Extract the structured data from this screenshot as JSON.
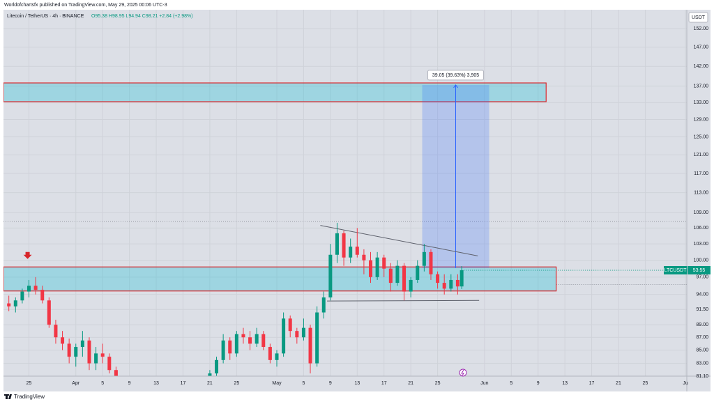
{
  "header": {
    "published": "Worldofchartsfx published on TradingView.com, May 29, 2025 00:06 UTC-3",
    "symbol": "Litecoin / TetherUS · 4h · BINANCE",
    "ohlc": "O95.38 H98.95 L94.94 C98.21 +2.84 (+2.98%)",
    "currency": "USDT",
    "brand": "TradingView"
  },
  "chart_data": {
    "type": "candlestick",
    "log": true,
    "grid": true,
    "up_color": "#089981",
    "down_color": "#f23645",
    "xlim": [
      80.2,
      182.2
    ],
    "ylim": [
      81.1,
      156.5
    ],
    "xticks": [
      {
        "value": 84,
        "label": "25"
      },
      {
        "value": 91,
        "label": "Apr"
      },
      {
        "value": 95,
        "label": "5"
      },
      {
        "value": 99,
        "label": "9"
      },
      {
        "value": 103,
        "label": "13"
      },
      {
        "value": 107,
        "label": "17"
      },
      {
        "value": 111,
        "label": "21"
      },
      {
        "value": 115,
        "label": "25"
      },
      {
        "value": 121,
        "label": "May"
      },
      {
        "value": 125,
        "label": "5"
      },
      {
        "value": 129,
        "label": "9"
      },
      {
        "value": 133,
        "label": "13"
      },
      {
        "value": 137,
        "label": "17"
      },
      {
        "value": 141,
        "label": "21"
      },
      {
        "value": 145,
        "label": "25"
      },
      {
        "value": 152,
        "label": "Jun"
      },
      {
        "value": 156,
        "label": "5"
      },
      {
        "value": 160,
        "label": "9"
      },
      {
        "value": 164,
        "label": "13"
      },
      {
        "value": 168,
        "label": "17"
      },
      {
        "value": 172,
        "label": "21"
      },
      {
        "value": 176,
        "label": "25"
      },
      {
        "value": 182,
        "label": "Ju"
      }
    ],
    "yticks": [
      {
        "value": 152,
        "label": "152.00"
      },
      {
        "value": 147,
        "label": "147.00"
      },
      {
        "value": 142,
        "label": "142.00"
      },
      {
        "value": 137,
        "label": "137.00"
      },
      {
        "value": 133,
        "label": "133.00"
      },
      {
        "value": 129,
        "label": "129.00"
      },
      {
        "value": 125,
        "label": "125.00"
      },
      {
        "value": 121,
        "label": "121.00"
      },
      {
        "value": 117,
        "label": "117.00"
      },
      {
        "value": 113,
        "label": "113.00"
      },
      {
        "value": 109,
        "label": "109.00"
      },
      {
        "value": 106,
        "label": "106.00"
      },
      {
        "value": 103,
        "label": "103.00"
      },
      {
        "value": 100,
        "label": "100.00"
      },
      {
        "value": 97,
        "label": "97.00"
      },
      {
        "value": 94,
        "label": "94.00"
      },
      {
        "value": 91.5,
        "label": "91.50"
      },
      {
        "value": 89,
        "label": "89.00"
      },
      {
        "value": 87,
        "label": "87.00"
      },
      {
        "value": 85,
        "label": "85.00"
      },
      {
        "value": 83,
        "label": "83.00"
      },
      {
        "value": 81.1,
        "label": "81.10"
      }
    ],
    "x": [
      81,
      82,
      83,
      84,
      85,
      86,
      87,
      88,
      89,
      90,
      91,
      92,
      93,
      94,
      95,
      96,
      97,
      111,
      112,
      113,
      114,
      115,
      116,
      117,
      118,
      119,
      120,
      121,
      122,
      123,
      124,
      125,
      126,
      127,
      128,
      129,
      130,
      131,
      132,
      133,
      134,
      135,
      136,
      137,
      138,
      139,
      140,
      141,
      142,
      143,
      144,
      145,
      146,
      147,
      148,
      148.6
    ],
    "open": [
      92.5,
      92.0,
      93.0,
      94.5,
      95.5,
      94.8,
      93.0,
      89.0,
      87.0,
      86.0,
      84.0,
      85.5,
      86.5,
      83.0,
      84.5,
      84.0,
      82.0,
      80.5,
      81.5,
      83.5,
      86.5,
      84.5,
      87.5,
      87.0,
      86.0,
      87.5,
      85.5,
      83.5,
      84.5,
      90.0,
      88.0,
      87.0,
      88.5,
      83.0,
      91.0,
      93.5,
      101.0,
      105.0,
      100.5,
      102.5,
      101.0,
      100.0,
      97.0,
      100.5,
      98.5,
      96.0,
      99.0,
      94.5,
      96.5,
      99.0,
      101.5,
      97.5,
      96.0,
      95.0,
      96.5,
      95.38
    ],
    "high": [
      93.8,
      93.5,
      95.0,
      96.5,
      97.0,
      95.5,
      93.5,
      89.8,
      88.0,
      86.8,
      86.0,
      88.0,
      87.0,
      85.5,
      86.0,
      84.5,
      82.5,
      82.0,
      84.0,
      87.5,
      87.0,
      88.0,
      88.5,
      88.0,
      88.5,
      88.0,
      86.0,
      85.0,
      91.0,
      90.5,
      88.5,
      90.0,
      89.0,
      92.0,
      94.5,
      103.0,
      107.0,
      105.5,
      104.0,
      106.0,
      102.0,
      101.5,
      101.5,
      101.0,
      99.5,
      100.0,
      99.5,
      97.0,
      100.0,
      103.0,
      102.0,
      98.0,
      97.5,
      97.5,
      97.5,
      98.95
    ],
    "low": [
      91.2,
      91.0,
      92.5,
      93.5,
      94.0,
      92.5,
      88.5,
      86.0,
      85.0,
      83.0,
      82.5,
      84.0,
      82.0,
      82.0,
      83.0,
      81.5,
      80.0,
      79.5,
      81.0,
      83.0,
      83.5,
      84.0,
      86.0,
      85.0,
      85.5,
      85.0,
      83.0,
      82.5,
      84.0,
      87.0,
      86.0,
      86.5,
      81.5,
      82.5,
      90.0,
      93.0,
      99.5,
      99.0,
      99.5,
      100.5,
      97.5,
      96.0,
      96.5,
      97.0,
      94.5,
      95.5,
      93.0,
      93.5,
      96.0,
      98.0,
      96.5,
      95.0,
      94.0,
      94.5,
      94.0,
      94.94
    ],
    "close": [
      92.0,
      93.0,
      94.5,
      95.5,
      94.8,
      93.0,
      89.0,
      87.0,
      86.0,
      84.0,
      85.5,
      86.5,
      83.0,
      84.5,
      84.0,
      82.0,
      80.5,
      81.5,
      83.5,
      86.5,
      84.5,
      87.5,
      87.0,
      86.0,
      87.5,
      85.5,
      83.5,
      84.5,
      90.0,
      88.0,
      87.0,
      88.5,
      83.0,
      91.0,
      93.5,
      101.0,
      105.0,
      100.5,
      102.5,
      101.0,
      100.0,
      97.0,
      100.5,
      98.5,
      96.0,
      99.0,
      94.5,
      96.5,
      99.0,
      101.5,
      97.5,
      96.0,
      95.0,
      96.5,
      95.38,
      98.21
    ],
    "zones": [
      {
        "low": 133.2,
        "high": 137.8,
        "from": 80.2,
        "to": 161.2
      },
      {
        "low": 94.6,
        "high": 98.8,
        "from": 80.2,
        "to": 162.7
      }
    ],
    "measure": {
      "from": 142.7,
      "to": 152.7,
      "low": 98.6,
      "high": 137.3,
      "label": "39.05 (39.63%) 3,905"
    },
    "trendlines": [
      {
        "x": [
          127.5,
          151.0
        ],
        "y": [
          106.5,
          100.8
        ]
      },
      {
        "x": [
          128.5,
          151.2
        ],
        "y": [
          92.9,
          93.0
        ]
      }
    ],
    "levels": [
      107.3,
      95.7
    ],
    "arrow": {
      "x": 83.8,
      "y": 100.5
    },
    "price_tag": {
      "symbol": "LTCUSDT",
      "countdown": "53:55"
    }
  }
}
